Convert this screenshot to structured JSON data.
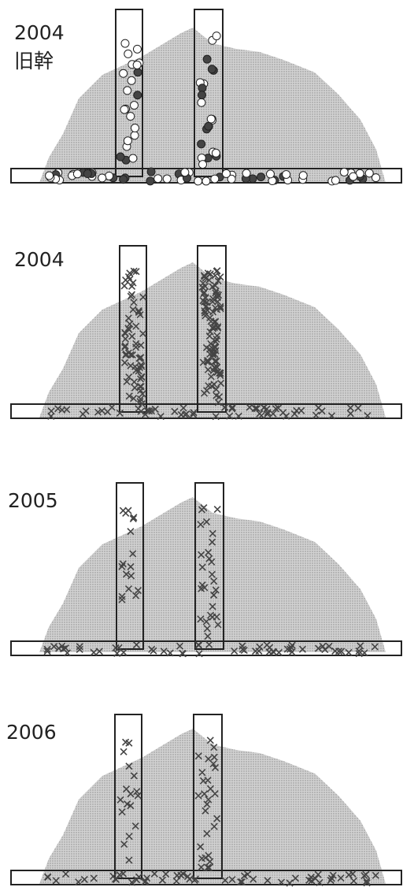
{
  "panels": [
    {
      "year": "2004",
      "note": "旧幹"
    },
    {
      "year": "2004"
    },
    {
      "year": "2005"
    },
    {
      "year": "2006"
    }
  ]
}
